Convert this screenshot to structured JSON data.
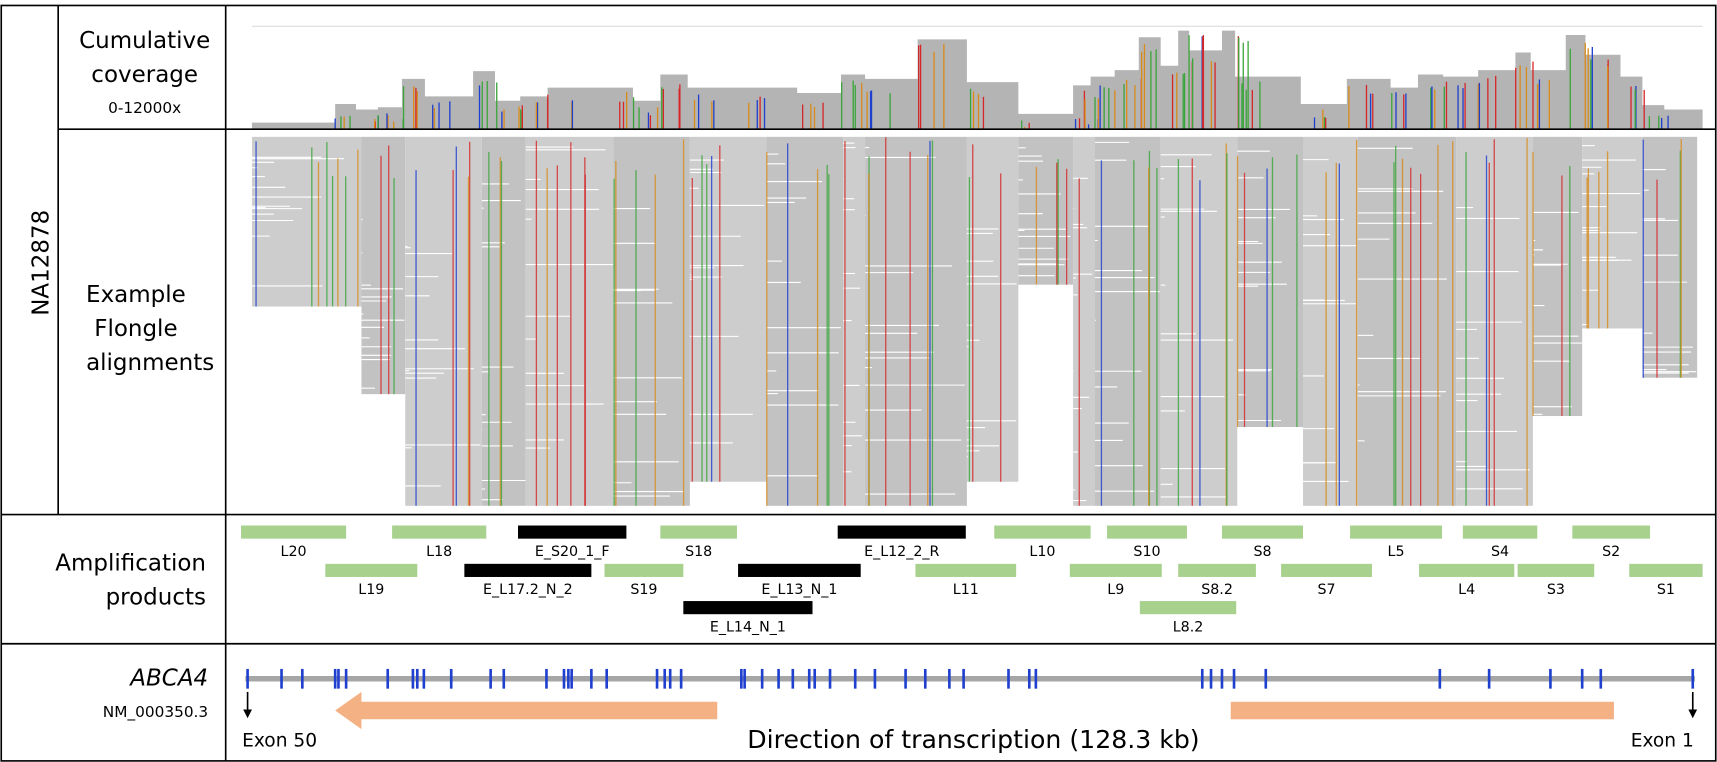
{
  "coverage_panel": {
    "label_lines": [
      "Cumulative",
      "coverage"
    ],
    "range": "0-12000x"
  },
  "sample": "NA12878",
  "alignment_panel": {
    "label_lines": [
      "Example",
      "Flongle",
      "alignments"
    ]
  },
  "amplification_panel": {
    "label_lines": [
      "Amplification",
      "products"
    ],
    "products": [
      "L20",
      "L18",
      "E_S20_1_F",
      "S18",
      "E_L12_2_R",
      "L10",
      "S10",
      "S8",
      "L5",
      "S4",
      "S2",
      "L19",
      "E_L17.2_N_2",
      "S19",
      "E_L13_N_1",
      "L11",
      "L9",
      "S8.2",
      "S7",
      "L4",
      "S3",
      "S1",
      "E_L14_N_1",
      "L8.2"
    ]
  },
  "gene_panel": {
    "gene": "ABCA4",
    "transcript": "NM_000350.3",
    "left_end": "Exon 50",
    "right_end": "Exon 1",
    "direction": "Direction of transcription (128.3 kb)"
  }
}
